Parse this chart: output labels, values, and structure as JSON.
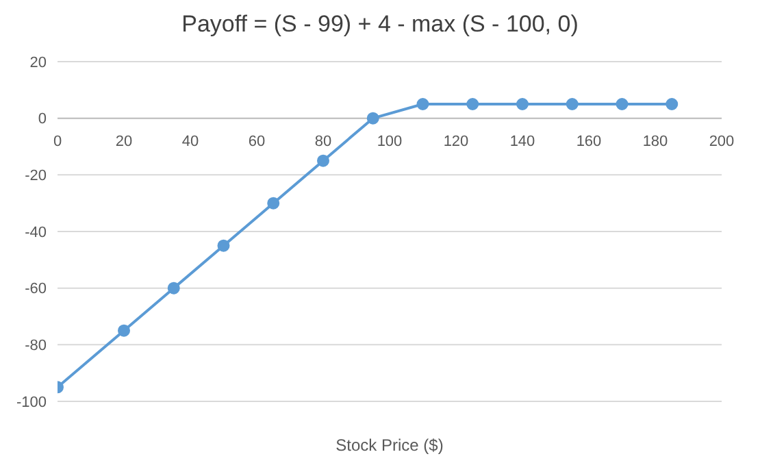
{
  "chart_data": {
    "type": "line",
    "title": "Payoff = (S - 99) + 4 - max (S - 100, 0)",
    "xlabel": "Stock Price ($)",
    "x": [
      0,
      20,
      35,
      50,
      65,
      80,
      95,
      110,
      125,
      140,
      155,
      170,
      185
    ],
    "series": [
      {
        "color": "#5b9bd5",
        "values": [
          -95,
          -75,
          -60,
          -45,
          -30,
          -15,
          0,
          5,
          5,
          5,
          5,
          5,
          5
        ]
      }
    ],
    "xlim": [
      0,
      200
    ],
    "xticks": [
      0,
      20,
      40,
      60,
      80,
      100,
      120,
      140,
      160,
      180,
      200
    ],
    "ylim": [
      -100,
      20
    ],
    "yticks": [
      -100,
      -80,
      -60,
      -40,
      -20,
      0,
      20
    ],
    "grid": "y",
    "marker": "circle",
    "line_style": "solid",
    "legend": false
  }
}
